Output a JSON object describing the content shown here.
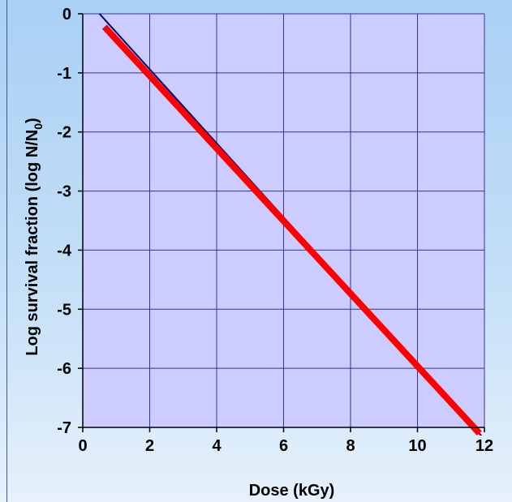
{
  "chart_data": {
    "type": "line",
    "title": "",
    "xlabel": "Dose (kGy)",
    "ylabel_main": "Log survival fraction (log N/N",
    "ylabel_sub": "0",
    "ylabel_close": ")",
    "xlim": [
      0,
      12
    ],
    "ylim": [
      -7,
      0
    ],
    "x_ticks": [
      0,
      2,
      4,
      6,
      8,
      10,
      12
    ],
    "y_ticks": [
      0,
      -1,
      -2,
      -3,
      -4,
      -5,
      -6,
      -7
    ],
    "x_tick_labels": [
      "0",
      "2",
      "4",
      "6",
      "8",
      "10",
      "12"
    ],
    "y_tick_labels": [
      "0",
      "-1",
      "-2",
      "-3",
      "-4",
      "-5",
      "-6",
      "-7"
    ],
    "grid": true,
    "plot_background": "#ccccff",
    "series": [
      {
        "color": "#000080",
        "line_width": "thin",
        "x": [
          0.5,
          12.0
        ],
        "y": [
          0.0,
          -7.2
        ]
      },
      {
        "color": "#ff0000",
        "line_width": "thick",
        "x": [
          0.65,
          11.85
        ],
        "y": [
          -0.22,
          -7.1
        ]
      }
    ]
  }
}
